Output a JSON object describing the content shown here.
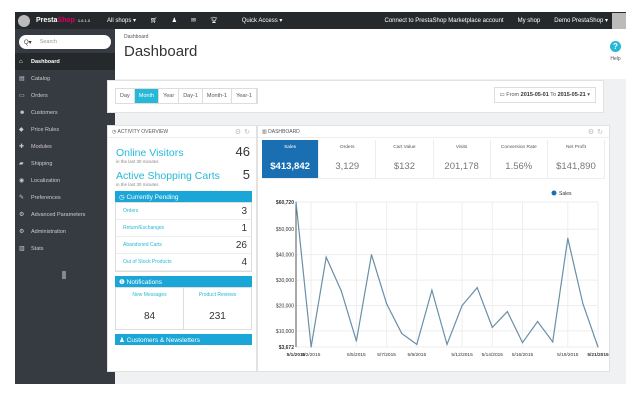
{
  "topbar": {
    "brand_a": "Presta",
    "brand_b": "Shop",
    "version": "1.6.1.0",
    "shops": "All shops ▾",
    "quick_access": "Quick Access ▾",
    "connect": "Connect to PrestaShop Marketplace account",
    "my_shop": "My shop",
    "user": "Demo PrestaShop ▾"
  },
  "sidebar": {
    "search_placeholder": "Search",
    "items": [
      {
        "label": "Dashboard",
        "icon": "home-icon"
      },
      {
        "label": "Catalog",
        "icon": "book-icon"
      },
      {
        "label": "Orders",
        "icon": "credit-card-icon"
      },
      {
        "label": "Customers",
        "icon": "users-icon"
      },
      {
        "label": "Price Rules",
        "icon": "tag-icon"
      },
      {
        "label": "Modules",
        "icon": "puzzle-icon"
      },
      {
        "label": "Shipping",
        "icon": "truck-icon"
      },
      {
        "label": "Localization",
        "icon": "globe-icon"
      },
      {
        "label": "Preferences",
        "icon": "wrench-icon"
      },
      {
        "label": "Advanced Parameters",
        "icon": "cogs-icon"
      },
      {
        "label": "Administration",
        "icon": "cog-icon"
      },
      {
        "label": "Stats",
        "icon": "bar-chart-icon"
      }
    ]
  },
  "header": {
    "breadcrumb": "Dashboard",
    "title": "Dashboard",
    "help": "Help"
  },
  "filter": {
    "periods": [
      "Day",
      "Month",
      "Year",
      "Day-1",
      "Month-1",
      "Year-1"
    ],
    "active": "Month",
    "from_label": "From",
    "from": "2015-05-01",
    "to_label": "To",
    "to": "2015-05-21"
  },
  "activity": {
    "title": "ACTIVITY OVERVIEW",
    "online_visitors": "Online Visitors",
    "online_count": "46",
    "carts": "Active Shopping Carts",
    "carts_count": "5",
    "subtitle": "in the last 30 minutes",
    "pending_title": "Currently Pending",
    "pending": [
      {
        "label": "Orders",
        "value": "3"
      },
      {
        "label": "Return/Exchanges",
        "value": "1"
      },
      {
        "label": "Abandoned Carts",
        "value": "26"
      },
      {
        "label": "Out of Stock Products",
        "value": "4"
      }
    ],
    "notifications_title": "Notifications",
    "notifications": [
      {
        "label": "New Messages",
        "value": "84"
      },
      {
        "label": "Product Reviews",
        "value": "231"
      }
    ],
    "customers_title": "Customers & Newsletters"
  },
  "dashboard": {
    "title": "DASHBOARD",
    "kpis": [
      {
        "label": "Sales",
        "value": "$413,842"
      },
      {
        "label": "Orders",
        "value": "3,129"
      },
      {
        "label": "Cart Value",
        "value": "$132"
      },
      {
        "label": "Visits",
        "value": "201,178"
      },
      {
        "label": "Conversion Rate",
        "value": "1.56%"
      },
      {
        "label": "Net Profit",
        "value": "$141,890"
      }
    ],
    "accent": "#1a6fb3"
  },
  "chart_data": {
    "type": "line",
    "x": [
      "5/1/2015",
      "5/2/2015",
      "5/3/2015",
      "5/4/2015",
      "5/5/2015",
      "5/6/2015",
      "5/7/2015",
      "5/8/2015",
      "5/9/2015",
      "5/10/2015",
      "5/11/2015",
      "5/12/2015",
      "5/13/2015",
      "5/14/2015",
      "5/15/2015",
      "5/16/2015",
      "5/17/2015",
      "5/18/2015",
      "5/19/2015",
      "5/20/2015",
      "5/21/2015"
    ],
    "series": [
      {
        "name": "Sales",
        "color": "#6a8fa6",
        "values": [
          60720,
          3672,
          39000,
          25700,
          6000,
          40000,
          20700,
          9000,
          4700,
          26000,
          4700,
          20000,
          27000,
          11400,
          17600,
          5400,
          13700,
          5700,
          46400,
          20700,
          3672
        ]
      }
    ],
    "x_ticks": [
      "5/1/2015",
      "5/2/2015",
      "5/5/2015",
      "5/7/2015",
      "5/9/2015",
      "5/12/2015",
      "5/14/2015",
      "5/16/2015",
      "5/19/2015",
      "5/21/2015"
    ],
    "y_ticks": [
      "$60,720",
      "$50,000",
      "$40,000",
      "$30,000",
      "$20,000",
      "$10,000",
      "$3,672"
    ],
    "ylim": [
      3672,
      60720
    ],
    "grid": true,
    "legend": "top-right"
  }
}
